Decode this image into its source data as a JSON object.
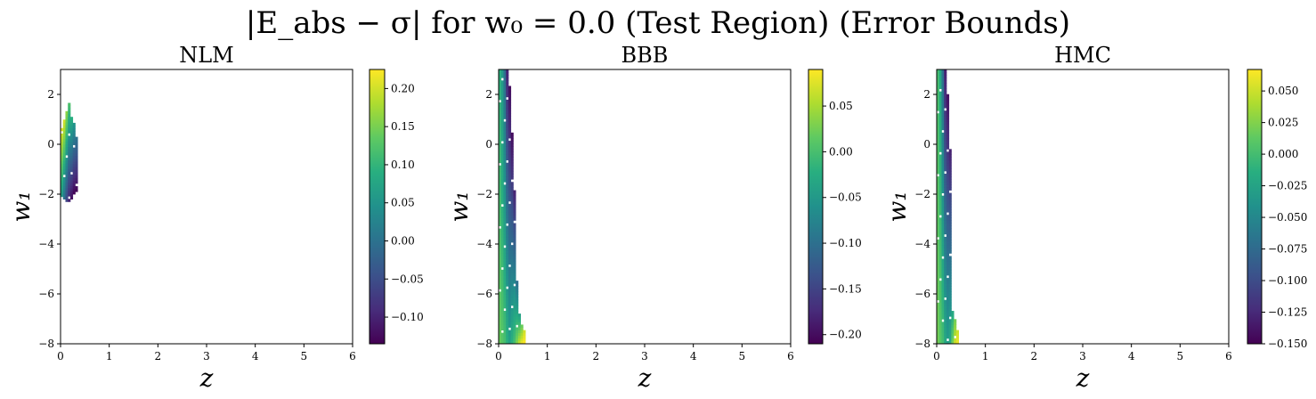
{
  "figure": {
    "suptitle": "|E_abs − σ| for w₀ = 0.0 (Test Region) (Error Bounds)"
  },
  "chart_data": [
    {
      "type": "heatmap",
      "title": "NLM",
      "xlabel": "z",
      "ylabel": "w₁",
      "xlim": [
        0,
        6
      ],
      "ylim": [
        -8,
        3
      ],
      "xticks": [
        "0",
        "1",
        "2",
        "3",
        "4",
        "5",
        "6"
      ],
      "yticks": [
        "−8",
        "−6",
        "−4",
        "−2",
        "0",
        "2"
      ],
      "colorbar": {
        "min": -0.135,
        "max": 0.225,
        "ticks": [
          -0.1,
          -0.05,
          0.0,
          0.05,
          0.1,
          0.15,
          0.2
        ],
        "tick_labels": [
          "−0.10",
          "−0.05",
          "0.00",
          "0.05",
          "0.10",
          "0.15",
          "0.20"
        ]
      },
      "colormap": "viridis",
      "cell": {
        "dx": 0.05,
        "dy": 0.11
      },
      "columns": [
        {
          "z": 0.0,
          "w_from": -2.1,
          "w_to": 0.7,
          "v_top": 0.21,
          "v_bot": 0.06
        },
        {
          "z": 0.05,
          "w_from": -2.2,
          "w_to": 1.0,
          "v_top": 0.2,
          "v_bot": 0.0
        },
        {
          "z": 0.1,
          "w_from": -2.3,
          "w_to": 1.3,
          "v_top": 0.16,
          "v_bot": -0.06
        },
        {
          "z": 0.15,
          "w_from": -2.3,
          "w_to": 1.65,
          "v_top": 0.12,
          "v_bot": -0.1
        },
        {
          "z": 0.2,
          "w_from": -2.2,
          "w_to": 1.1,
          "v_top": 0.09,
          "v_bot": -0.12
        },
        {
          "z": 0.25,
          "w_from": -2.0,
          "w_to": 0.9,
          "v_top": 0.05,
          "v_bot": -0.13
        },
        {
          "z": 0.3,
          "w_from": -1.9,
          "w_to": 0.3,
          "v_top": 0.0,
          "v_bot": -0.13
        }
      ]
    },
    {
      "type": "heatmap",
      "title": "BBB",
      "xlabel": "z",
      "ylabel": "w₁",
      "xlim": [
        0,
        6
      ],
      "ylim": [
        -8,
        3
      ],
      "xticks": [
        "0",
        "1",
        "2",
        "3",
        "4",
        "5",
        "6"
      ],
      "yticks": [
        "−8",
        "−6",
        "−4",
        "−2",
        "0",
        "2"
      ],
      "colorbar": {
        "min": -0.21,
        "max": 0.09,
        "ticks": [
          -0.2,
          -0.15,
          -0.1,
          -0.05,
          0.0,
          0.05
        ],
        "tick_labels": [
          "−0.20",
          "−0.15",
          "−0.10",
          "−0.05",
          "0.00",
          "0.05"
        ]
      },
      "colormap": "viridis",
      "cell": {
        "dx": 0.05,
        "dy": 0.11
      },
      "columns": [
        {
          "z": 0.0,
          "w_from": -8.0,
          "w_to": 3.0,
          "v_top": -0.02,
          "v_bot": 0.02
        },
        {
          "z": 0.05,
          "w_from": -8.0,
          "w_to": 3.0,
          "v_top": -0.05,
          "v_bot": 0.01
        },
        {
          "z": 0.1,
          "w_from": -8.0,
          "w_to": 3.0,
          "v_top": -0.1,
          "v_bot": 0.0
        },
        {
          "z": 0.15,
          "w_from": -8.0,
          "w_to": 3.0,
          "v_top": -0.18,
          "v_bot": -0.02
        },
        {
          "z": 0.2,
          "w_from": -8.0,
          "w_to": 2.3,
          "v_top": -0.2,
          "v_bot": -0.04
        },
        {
          "z": 0.25,
          "w_from": -8.0,
          "w_to": 0.5,
          "v_top": -0.2,
          "v_bot": -0.02
        },
        {
          "z": 0.3,
          "w_from": -8.0,
          "w_to": -1.8,
          "v_top": -0.18,
          "v_bot": 0.0
        },
        {
          "z": 0.35,
          "w_from": -8.0,
          "w_to": -5.5,
          "v_top": -0.1,
          "v_bot": 0.03
        },
        {
          "z": 0.4,
          "w_from": -8.0,
          "w_to": -6.8,
          "v_top": -0.04,
          "v_bot": 0.06
        },
        {
          "z": 0.45,
          "w_from": -8.0,
          "w_to": -7.2,
          "v_top": 0.02,
          "v_bot": 0.08
        },
        {
          "z": 0.5,
          "w_from": -8.0,
          "w_to": -7.5,
          "v_top": 0.07,
          "v_bot": 0.09
        }
      ]
    },
    {
      "type": "heatmap",
      "title": "HMC",
      "xlabel": "z",
      "ylabel": "w₁",
      "xlim": [
        0,
        6
      ],
      "ylim": [
        -8,
        3
      ],
      "xticks": [
        "0",
        "1",
        "2",
        "3",
        "4",
        "5",
        "6"
      ],
      "yticks": [
        "−8",
        "−6",
        "−4",
        "−2",
        "0",
        "2"
      ],
      "colorbar": {
        "min": -0.15,
        "max": 0.067,
        "ticks": [
          -0.15,
          -0.125,
          -0.1,
          -0.075,
          -0.05,
          -0.025,
          0.0,
          0.025,
          0.05
        ],
        "tick_labels": [
          "−0.150",
          "−0.125",
          "−0.100",
          "−0.075",
          "−0.050",
          "−0.025",
          "0.000",
          "0.025",
          "0.050"
        ]
      },
      "colormap": "viridis",
      "cell": {
        "dx": 0.05,
        "dy": 0.11
      },
      "columns": [
        {
          "z": 0.0,
          "w_from": -8.0,
          "w_to": 3.0,
          "v_top": 0.0,
          "v_bot": 0.02
        },
        {
          "z": 0.05,
          "w_from": -8.0,
          "w_to": 3.0,
          "v_top": -0.02,
          "v_bot": 0.01
        },
        {
          "z": 0.1,
          "w_from": -8.0,
          "w_to": 3.0,
          "v_top": -0.07,
          "v_bot": 0.0
        },
        {
          "z": 0.15,
          "w_from": -8.0,
          "w_to": 3.0,
          "v_top": -0.13,
          "v_bot": -0.02
        },
        {
          "z": 0.2,
          "w_from": -8.0,
          "w_to": 2.0,
          "v_top": -0.14,
          "v_bot": -0.03
        },
        {
          "z": 0.25,
          "w_from": -8.0,
          "w_to": -0.2,
          "v_top": -0.13,
          "v_bot": -0.02
        },
        {
          "z": 0.3,
          "w_from": -8.0,
          "w_to": -6.7,
          "v_top": -0.02,
          "v_bot": 0.02
        },
        {
          "z": 0.35,
          "w_from": -8.0,
          "w_to": -7.0,
          "v_top": 0.02,
          "v_bot": 0.05
        },
        {
          "z": 0.4,
          "w_from": -8.0,
          "w_to": -7.5,
          "v_top": 0.05,
          "v_bot": 0.06
        }
      ]
    }
  ]
}
